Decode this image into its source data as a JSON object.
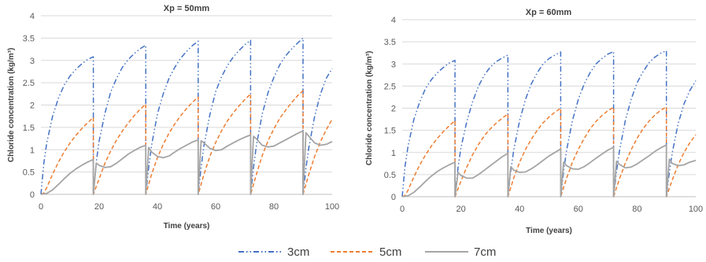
{
  "legend": {
    "placement": "bottom-center"
  },
  "chart_data": [
    {
      "type": "line",
      "title": "Xp = 50mm",
      "xlabel": "Time (years)",
      "ylabel": "Chloride concentration (kg/m³)",
      "xlim": [
        0,
        100
      ],
      "ylim": [
        0,
        4
      ],
      "xticks": [
        0,
        20,
        40,
        60,
        80,
        100
      ],
      "yticks": [
        0,
        0.5,
        1,
        1.5,
        2,
        2.5,
        3,
        3.5,
        4
      ],
      "grid": true,
      "series": [
        {
          "name": "3cm",
          "color": "#4472C4",
          "dash": "dash-dot-dot",
          "x": [
            0,
            1,
            2,
            4,
            6,
            8,
            10,
            12,
            14,
            16,
            18,
            18,
            19,
            20,
            22,
            24,
            26,
            28,
            30,
            32,
            34,
            36,
            36,
            37,
            38,
            40,
            42,
            44,
            46,
            48,
            50,
            52,
            54,
            54,
            55,
            56,
            58,
            60,
            62,
            64,
            66,
            68,
            70,
            72,
            72,
            73,
            74,
            76,
            78,
            80,
            82,
            84,
            86,
            88,
            90,
            90,
            91,
            92,
            94,
            96,
            98,
            100
          ],
          "y": [
            0,
            0.7,
            1.15,
            1.75,
            2.15,
            2.45,
            2.65,
            2.8,
            2.92,
            3.02,
            3.08,
            0,
            0.72,
            1.2,
            1.82,
            2.3,
            2.6,
            2.85,
            3.02,
            3.15,
            3.26,
            3.34,
            0,
            0.6,
            1.1,
            1.8,
            2.25,
            2.6,
            2.85,
            3.05,
            3.2,
            3.33,
            3.43,
            0,
            0.6,
            1.1,
            1.78,
            2.3,
            2.63,
            2.88,
            3.07,
            3.22,
            3.35,
            3.45,
            0,
            0.6,
            1.1,
            1.8,
            2.28,
            2.62,
            2.9,
            3.1,
            3.25,
            3.38,
            3.5,
            0,
            0.58,
            1.05,
            1.75,
            2.25,
            2.6,
            2.82
          ]
        },
        {
          "name": "5cm",
          "color": "#ED7D31",
          "dash": "dash",
          "x": [
            0,
            1,
            2,
            4,
            6,
            8,
            10,
            12,
            14,
            16,
            18,
            18,
            20,
            22,
            24,
            26,
            28,
            30,
            32,
            34,
            36,
            36,
            38,
            40,
            42,
            44,
            46,
            48,
            50,
            52,
            54,
            54,
            56,
            58,
            60,
            62,
            64,
            66,
            68,
            70,
            72,
            72,
            74,
            76,
            78,
            80,
            82,
            84,
            86,
            88,
            90,
            90,
            92,
            94,
            96,
            98,
            100
          ],
          "y": [
            0,
            0.03,
            0.15,
            0.45,
            0.72,
            0.95,
            1.15,
            1.32,
            1.47,
            1.6,
            1.72,
            0,
            0.35,
            0.7,
            0.98,
            1.22,
            1.42,
            1.6,
            1.76,
            1.9,
            2.02,
            0,
            0.45,
            0.82,
            1.12,
            1.37,
            1.58,
            1.76,
            1.92,
            2.06,
            2.18,
            0,
            0.45,
            0.85,
            1.16,
            1.42,
            1.64,
            1.82,
            1.98,
            2.12,
            2.25,
            0,
            0.45,
            0.87,
            1.2,
            1.47,
            1.7,
            1.88,
            2.05,
            2.2,
            2.32,
            0,
            0.45,
            0.85,
            1.18,
            1.45,
            1.68
          ]
        },
        {
          "name": "7cm",
          "color": "#A5A5A5",
          "dash": "solid",
          "x": [
            0,
            2,
            4,
            6,
            8,
            10,
            12,
            14,
            16,
            18,
            18,
            19,
            20,
            22,
            24,
            26,
            28,
            30,
            32,
            34,
            36,
            36,
            37,
            38,
            40,
            42,
            44,
            46,
            48,
            50,
            52,
            54,
            54,
            55,
            56,
            58,
            60,
            62,
            64,
            66,
            68,
            70,
            72,
            72,
            73,
            74,
            76,
            78,
            80,
            82,
            84,
            86,
            88,
            90,
            90,
            91,
            92,
            94,
            96,
            98,
            100
          ],
          "y": [
            0,
            0.02,
            0.1,
            0.22,
            0.35,
            0.47,
            0.57,
            0.65,
            0.72,
            0.78,
            0,
            0.7,
            0.65,
            0.6,
            0.62,
            0.7,
            0.8,
            0.9,
            0.98,
            1.05,
            1.1,
            0,
            1.05,
            0.95,
            0.85,
            0.82,
            0.86,
            0.95,
            1.03,
            1.1,
            1.17,
            1.22,
            0,
            1.2,
            1.15,
            1.03,
            0.98,
            1.0,
            1.08,
            1.15,
            1.22,
            1.28,
            1.33,
            0,
            1.3,
            1.24,
            1.1,
            1.06,
            1.08,
            1.15,
            1.22,
            1.29,
            1.36,
            1.42,
            0,
            1.38,
            1.3,
            1.15,
            1.1,
            1.12,
            1.18
          ]
        }
      ]
    },
    {
      "type": "line",
      "title": "Xp = 60mm",
      "xlabel": "Time (years)",
      "ylabel": "Chloride concentration (kg/m³)",
      "xlim": [
        0,
        100
      ],
      "ylim": [
        0,
        4
      ],
      "xticks": [
        0,
        20,
        40,
        60,
        80,
        100
      ],
      "yticks": [
        0,
        0.5,
        1,
        1.5,
        2,
        2.5,
        3,
        3.5,
        4
      ],
      "grid": true,
      "series": [
        {
          "name": "3cm",
          "color": "#4472C4",
          "dash": "dash-dot-dot",
          "x": [
            0,
            1,
            2,
            4,
            6,
            8,
            10,
            12,
            14,
            16,
            18,
            18,
            19,
            20,
            22,
            24,
            26,
            28,
            30,
            32,
            34,
            36,
            36,
            37,
            38,
            40,
            42,
            44,
            46,
            48,
            50,
            52,
            54,
            54,
            55,
            56,
            58,
            60,
            62,
            64,
            66,
            68,
            70,
            72,
            72,
            73,
            74,
            76,
            78,
            80,
            82,
            84,
            86,
            88,
            90,
            90,
            91,
            92,
            94,
            96,
            98,
            100
          ],
          "y": [
            0,
            0.7,
            1.15,
            1.75,
            2.15,
            2.45,
            2.65,
            2.8,
            2.92,
            3.02,
            3.08,
            0,
            0.65,
            1.1,
            1.7,
            2.15,
            2.5,
            2.75,
            2.93,
            3.05,
            3.13,
            3.2,
            0,
            0.58,
            1.05,
            1.72,
            2.2,
            2.55,
            2.8,
            3.0,
            3.12,
            3.2,
            3.27,
            0,
            0.58,
            1.05,
            1.72,
            2.2,
            2.55,
            2.8,
            3.0,
            3.12,
            3.22,
            3.28,
            0,
            0.57,
            1.03,
            1.72,
            2.2,
            2.57,
            2.82,
            3.02,
            3.15,
            3.24,
            3.3,
            0,
            0.55,
            1.0,
            1.65,
            2.1,
            2.4,
            2.62
          ]
        },
        {
          "name": "5cm",
          "color": "#ED7D31",
          "dash": "dash",
          "x": [
            0,
            1,
            2,
            4,
            6,
            8,
            10,
            12,
            14,
            16,
            18,
            18,
            20,
            22,
            24,
            26,
            28,
            30,
            32,
            34,
            36,
            36,
            38,
            40,
            42,
            44,
            46,
            48,
            50,
            52,
            54,
            54,
            56,
            58,
            60,
            62,
            64,
            66,
            68,
            70,
            72,
            72,
            74,
            76,
            78,
            80,
            82,
            84,
            86,
            88,
            90,
            90,
            92,
            94,
            96,
            98,
            100
          ],
          "y": [
            0,
            0.03,
            0.15,
            0.45,
            0.72,
            0.95,
            1.15,
            1.32,
            1.47,
            1.6,
            1.72,
            0,
            0.35,
            0.67,
            0.95,
            1.18,
            1.38,
            1.53,
            1.66,
            1.77,
            1.87,
            0,
            0.42,
            0.78,
            1.07,
            1.3,
            1.5,
            1.67,
            1.8,
            1.91,
            2.0,
            0,
            0.42,
            0.78,
            1.07,
            1.32,
            1.53,
            1.7,
            1.83,
            1.94,
            2.02,
            0,
            0.4,
            0.76,
            1.06,
            1.32,
            1.53,
            1.7,
            1.84,
            1.95,
            2.03,
            0,
            0.38,
            0.72,
            1.0,
            1.22,
            1.4
          ]
        },
        {
          "name": "7cm",
          "color": "#A5A5A5",
          "dash": "solid",
          "x": [
            0,
            2,
            4,
            6,
            8,
            10,
            12,
            14,
            16,
            18,
            18,
            19,
            20,
            22,
            24,
            26,
            28,
            30,
            32,
            34,
            36,
            36,
            37,
            38,
            40,
            42,
            44,
            46,
            48,
            50,
            52,
            54,
            54,
            55,
            56,
            58,
            60,
            62,
            64,
            66,
            68,
            70,
            72,
            72,
            73,
            74,
            76,
            78,
            80,
            82,
            84,
            86,
            88,
            90,
            90,
            91,
            92,
            94,
            96,
            98,
            100
          ],
          "y": [
            0,
            0.02,
            0.1,
            0.22,
            0.35,
            0.47,
            0.57,
            0.65,
            0.72,
            0.78,
            0,
            0.55,
            0.48,
            0.42,
            0.42,
            0.5,
            0.6,
            0.7,
            0.8,
            0.9,
            0.98,
            0,
            0.68,
            0.6,
            0.55,
            0.56,
            0.63,
            0.72,
            0.82,
            0.92,
            1.0,
            1.08,
            0,
            0.78,
            0.7,
            0.63,
            0.62,
            0.68,
            0.77,
            0.87,
            0.96,
            1.05,
            1.12,
            0,
            0.8,
            0.73,
            0.65,
            0.67,
            0.74,
            0.83,
            0.92,
            1.02,
            1.1,
            1.17,
            0,
            0.85,
            0.75,
            0.7,
            0.72,
            0.78,
            0.82
          ]
        }
      ]
    }
  ]
}
